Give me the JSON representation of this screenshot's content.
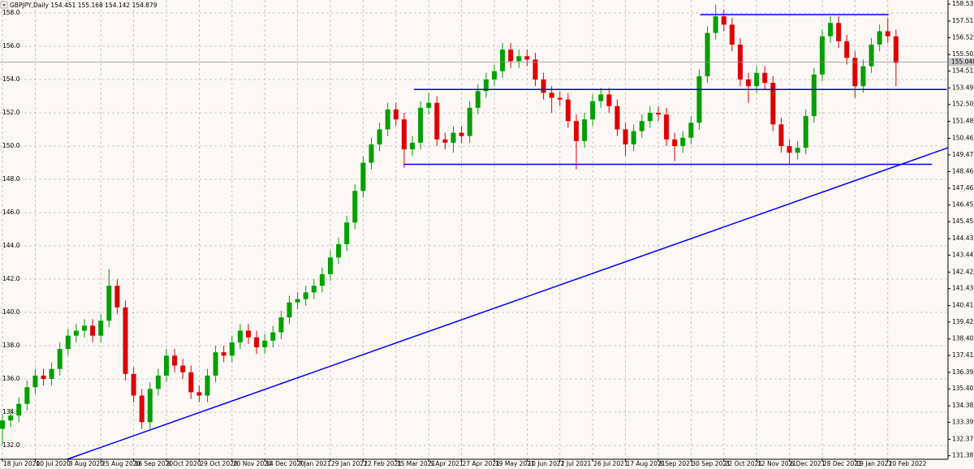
{
  "chart_data": {
    "type": "candlestick",
    "title": "GBPJPY,Daily  154.451 155.168 154.142 154.879",
    "colors": {
      "up": "#00a000",
      "down": "#e00000",
      "line": "#0000ff"
    },
    "grid": true,
    "xlim": [
      -0.3,
      115.35
    ],
    "xticks": [
      {
        "value": 0,
        "label": "18 Jun 2020"
      },
      {
        "value": 4,
        "label": "10 Jul 2020"
      },
      {
        "value": 8,
        "label": "3 Aug 2020"
      },
      {
        "value": 12,
        "label": "25 Aug 2020"
      },
      {
        "value": 16,
        "label": "16 Sep 2020"
      },
      {
        "value": 20,
        "label": "8 Oct 2020"
      },
      {
        "value": 24,
        "label": "29 Oct 2020"
      },
      {
        "value": 28,
        "label": "20 Nov 2020"
      },
      {
        "value": 32,
        "label": "14 Dec 2020"
      },
      {
        "value": 36,
        "label": "7 Jan 2021"
      },
      {
        "value": 40,
        "label": "29 Jan 2021"
      },
      {
        "value": 44,
        "label": "22 Feb 2021"
      },
      {
        "value": 48,
        "label": "15 Mar 2021"
      },
      {
        "value": 52,
        "label": "5 Apr 2021"
      },
      {
        "value": 56,
        "label": "27 Apr 2021"
      },
      {
        "value": 60,
        "label": "19 May 2021"
      },
      {
        "value": 64,
        "label": "10 Jun 2021"
      },
      {
        "value": 68,
        "label": "2 Jul 2021"
      },
      {
        "value": 72,
        "label": "26 Jul 2021"
      },
      {
        "value": 76,
        "label": "17 Aug 2021"
      },
      {
        "value": 80,
        "label": "8 Sep 2021"
      },
      {
        "value": 84,
        "label": "30 Sep 2021"
      },
      {
        "value": 88,
        "label": "22 Oct 2021"
      },
      {
        "value": 92,
        "label": "12 Nov 2021"
      },
      {
        "value": 96,
        "label": "6 Dec 2021"
      },
      {
        "value": 100,
        "label": "28 Dec 2021"
      },
      {
        "value": 104,
        "label": "19 Jan 2022"
      },
      {
        "value": 108,
        "label": "10 Feb 2022"
      }
    ],
    "ylim": [
      131.17,
      158.78
    ],
    "yticks": [
      {
        "value": 132,
        "label": "132.0"
      },
      {
        "value": 134,
        "label": "134.0"
      },
      {
        "value": 136,
        "label": "136.0"
      },
      {
        "value": 138,
        "label": "138.0"
      },
      {
        "value": 140,
        "label": "140.0"
      },
      {
        "value": 142,
        "label": "142.0"
      },
      {
        "value": 144,
        "label": "144.0"
      },
      {
        "value": 146,
        "label": "146.0"
      },
      {
        "value": 148,
        "label": "148.0"
      },
      {
        "value": 150,
        "label": "150.0"
      },
      {
        "value": 152,
        "label": "152.0"
      },
      {
        "value": 154,
        "label": "154.0"
      },
      {
        "value": 156,
        "label": "156.0"
      },
      {
        "value": 158,
        "label": "158.0"
      }
    ],
    "y2lim": [
      131.17,
      158.78
    ],
    "y2ticks": [
      158.531,
      157.512,
      156.522,
      155.502,
      154.512,
      153.492,
      152.502,
      151.482,
      150.462,
      149.472,
      148.462,
      147.462,
      146.452,
      145.452,
      144.432,
      143.442,
      142.422,
      141.432,
      140.412,
      139.422,
      138.402,
      137.412,
      136.392,
      135.402,
      134.382,
      133.392,
      132.372,
      131.381
    ],
    "current_price": 155.048,
    "open": [
      133.0,
      133.5,
      133.8,
      134.5,
      135.5,
      136.2,
      136.0,
      136.6,
      137.8,
      138.6,
      138.9,
      139.2,
      138.6,
      139.5,
      141.6,
      140.3,
      136.3,
      135.0,
      133.4,
      135.4,
      136.2,
      137.4,
      136.8,
      136.4,
      135.2,
      135.0,
      136.2,
      137.6,
      137.4,
      138.2,
      138.9,
      138.5,
      137.9,
      138.3,
      138.8,
      139.7,
      140.6,
      140.8,
      141.2,
      141.6,
      142.3,
      143.3,
      144.1,
      145.4,
      147.3,
      149.0,
      150.1,
      151.0,
      152.2,
      151.6,
      149.8,
      150.2,
      152.3,
      152.6,
      150.4,
      150.2,
      150.8,
      150.6,
      152.3,
      153.3,
      154.0,
      154.5,
      155.8,
      155.1,
      155.4,
      155.2,
      154.0,
      153.2,
      152.9,
      152.8,
      151.5,
      150.3,
      151.6,
      152.7,
      153.1,
      152.4,
      151.0,
      150.1,
      150.9,
      151.5,
      152.0,
      151.9,
      150.4,
      150.0,
      150.5,
      151.4,
      154.2,
      156.8,
      157.8,
      157.3,
      156.1,
      154.0,
      153.6,
      154.4,
      153.8,
      151.3,
      150.0,
      149.6,
      149.9,
      151.8,
      154.3,
      156.6,
      157.4,
      156.3,
      155.3,
      153.6,
      154.8,
      156.1,
      156.9,
      156.6
    ],
    "high": [
      133.9,
      134.2,
      134.9,
      135.9,
      136.6,
      136.6,
      137.0,
      138.2,
      139.0,
      139.3,
      139.6,
      139.6,
      139.9,
      142.6,
      142.0,
      140.7,
      136.7,
      135.4,
      135.8,
      136.6,
      137.8,
      137.8,
      137.2,
      136.8,
      135.6,
      136.6,
      138.0,
      138.0,
      138.6,
      139.3,
      139.3,
      138.9,
      138.7,
      139.2,
      140.1,
      141.0,
      141.2,
      141.6,
      142.0,
      142.7,
      143.7,
      144.5,
      145.8,
      147.7,
      149.4,
      150.5,
      151.4,
      152.6,
      152.6,
      152.0,
      150.6,
      152.7,
      153.2,
      153.0,
      150.8,
      151.2,
      151.2,
      152.7,
      153.7,
      154.4,
      154.9,
      156.2,
      156.2,
      155.8,
      155.8,
      155.6,
      154.4,
      153.6,
      153.3,
      153.2,
      151.9,
      152.0,
      153.1,
      153.5,
      153.5,
      152.8,
      151.4,
      151.3,
      151.9,
      152.4,
      152.4,
      152.3,
      150.8,
      150.9,
      151.8,
      154.6,
      157.2,
      158.5,
      158.2,
      157.7,
      156.5,
      154.4,
      154.8,
      154.8,
      154.2,
      151.7,
      150.4,
      150.3,
      152.2,
      154.7,
      157.0,
      157.8,
      157.8,
      156.7,
      155.7,
      155.2,
      156.5,
      157.3,
      157.7,
      157.0
    ],
    "low": [
      132.0,
      133.1,
      133.4,
      134.1,
      135.1,
      135.6,
      135.6,
      136.2,
      137.4,
      138.2,
      138.5,
      138.2,
      138.2,
      139.1,
      139.9,
      135.9,
      134.6,
      133.0,
      133.0,
      135.0,
      135.8,
      136.4,
      136.0,
      134.8,
      134.6,
      134.6,
      135.8,
      137.0,
      137.0,
      137.8,
      138.1,
      137.5,
      137.5,
      137.9,
      138.4,
      139.3,
      140.2,
      140.4,
      140.8,
      141.2,
      141.9,
      142.9,
      143.7,
      145.0,
      146.9,
      148.6,
      149.7,
      150.6,
      151.2,
      148.7,
      149.4,
      149.8,
      151.9,
      150.0,
      149.8,
      149.6,
      150.2,
      150.2,
      151.9,
      152.9,
      153.6,
      154.1,
      154.7,
      154.7,
      154.8,
      153.6,
      152.8,
      152.0,
      152.4,
      151.1,
      148.6,
      149.9,
      151.2,
      152.3,
      152.0,
      150.6,
      149.4,
      149.7,
      150.5,
      151.1,
      151.5,
      150.0,
      149.1,
      149.6,
      150.1,
      151.0,
      153.8,
      156.4,
      156.9,
      155.7,
      153.6,
      152.6,
      153.2,
      153.4,
      150.9,
      149.6,
      148.9,
      149.2,
      149.5,
      151.4,
      153.9,
      156.2,
      155.9,
      154.9,
      152.9,
      153.2,
      154.4,
      155.7,
      156.2,
      153.6
    ],
    "close": [
      133.5,
      133.8,
      134.5,
      135.5,
      136.2,
      136.0,
      136.6,
      137.8,
      138.6,
      138.9,
      139.2,
      138.6,
      139.5,
      141.6,
      140.3,
      136.3,
      135.0,
      133.4,
      135.4,
      136.2,
      137.4,
      136.8,
      136.4,
      135.2,
      135.0,
      136.2,
      137.6,
      137.4,
      138.2,
      138.9,
      138.5,
      137.9,
      138.3,
      138.8,
      139.7,
      140.6,
      140.8,
      141.2,
      141.6,
      142.3,
      143.3,
      144.1,
      145.4,
      147.3,
      149.0,
      150.1,
      151.0,
      152.2,
      151.6,
      149.8,
      150.2,
      152.3,
      152.6,
      150.4,
      150.2,
      150.8,
      150.6,
      152.3,
      153.3,
      154.0,
      154.5,
      155.8,
      155.1,
      155.4,
      155.2,
      154.0,
      153.2,
      152.9,
      152.8,
      151.5,
      150.3,
      151.6,
      152.7,
      153.1,
      152.4,
      151.0,
      150.1,
      150.9,
      151.5,
      152.0,
      151.9,
      150.4,
      150.0,
      150.5,
      151.4,
      154.2,
      156.8,
      157.8,
      157.3,
      156.1,
      154.0,
      153.6,
      154.4,
      153.8,
      151.3,
      150.0,
      149.6,
      149.9,
      151.8,
      154.3,
      156.6,
      157.4,
      156.3,
      155.3,
      153.6,
      154.8,
      156.1,
      156.9,
      156.6,
      155.0
    ],
    "trendlines": [
      {
        "x": [
          7.9,
          115.35
        ],
        "y": [
          131.17,
          149.9
        ]
      },
      {
        "x": [
          49,
          113.4
        ],
        "y": [
          148.9,
          148.9
        ]
      },
      {
        "x": [
          50.2,
          115.2
        ],
        "y": [
          153.4,
          153.4
        ]
      },
      {
        "x": [
          85.1,
          108.1
        ],
        "y": [
          157.9,
          157.9
        ]
      }
    ]
  }
}
